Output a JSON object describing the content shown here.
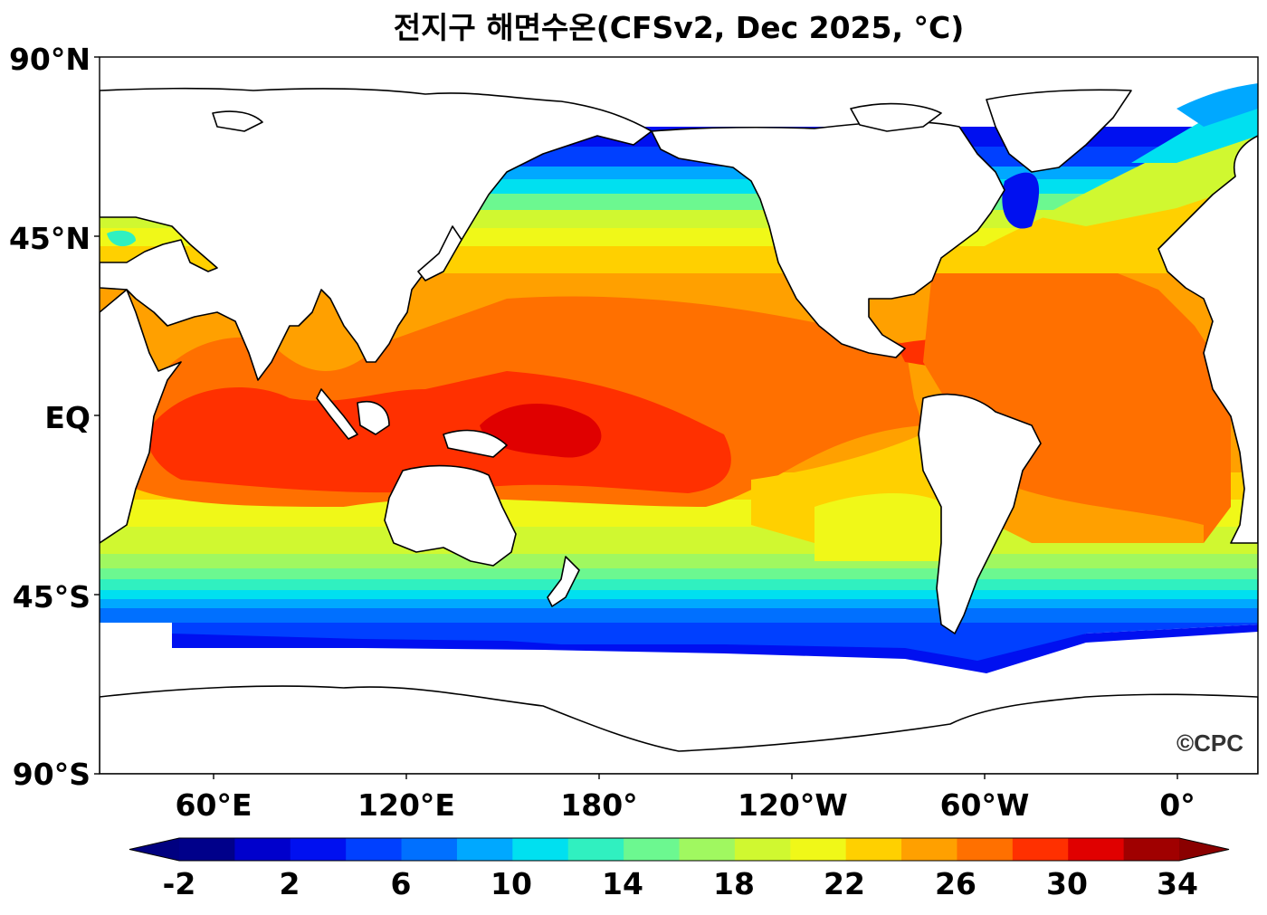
{
  "title": "전지구 해면수온(CFSv2, Dec 2025, °C)",
  "lat_labels": [
    "90°N",
    "45°N",
    "EQ",
    "45°S",
    "90°S"
  ],
  "lon_labels": [
    "60°E",
    "120°E",
    "180°",
    "120°W",
    "60°W",
    "0°"
  ],
  "colorbar": {
    "tick_labels": [
      "-2",
      "2",
      "6",
      "10",
      "14",
      "18",
      "22",
      "26",
      "30",
      "34"
    ],
    "colors": [
      "#00008a",
      "#0000cc",
      "#0010f0",
      "#0040ff",
      "#0070ff",
      "#00a8ff",
      "#00e0f0",
      "#30f0c0",
      "#6cf890",
      "#a0f860",
      "#d0f830",
      "#f0f818",
      "#ffd000",
      "#ffa000",
      "#ff7000",
      "#ff3000",
      "#e00000",
      "#a00000"
    ],
    "min_color": "#000080",
    "max_color": "#8a0000"
  },
  "watermark": "©CPC"
}
